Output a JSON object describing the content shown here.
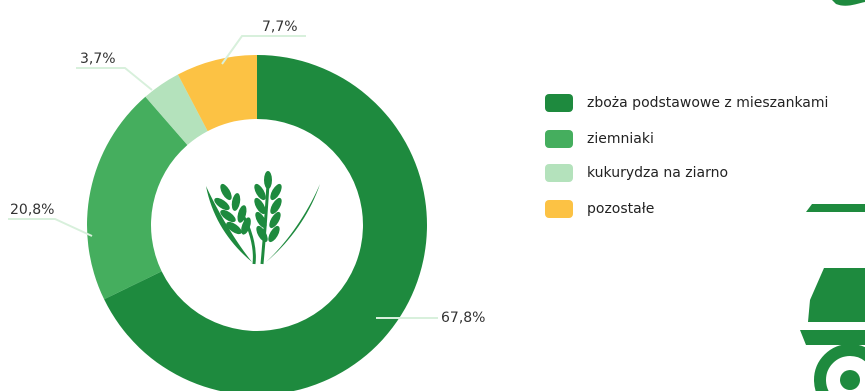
{
  "colors": {
    "dark_green": "#1E8A3E",
    "mid_green": "#45AE5E",
    "light_green": "#B4E2BC",
    "yellow": "#FCC244",
    "leader_line": "#D8F0DC",
    "truck_green": "#1E8A3E"
  },
  "icons": {
    "center": "wheat-icon",
    "decoration": "tractor-icon"
  },
  "chart_data": {
    "type": "pie",
    "donut": true,
    "slices": [
      {
        "label": "zboża podstawowe z mieszankami",
        "value": 67.8,
        "display": "67,8%",
        "color": "#1E8A3E"
      },
      {
        "label": "ziemniaki",
        "value": 20.8,
        "display": "20,8%",
        "color": "#45AE5E"
      },
      {
        "label": "kukurydza na ziarno",
        "value": 3.7,
        "display": "3,7%",
        "color": "#B4E2BC"
      },
      {
        "label": "pozostałe",
        "value": 7.7,
        "display": "7,7%",
        "color": "#FCC244"
      }
    ],
    "legend_position": "right"
  }
}
